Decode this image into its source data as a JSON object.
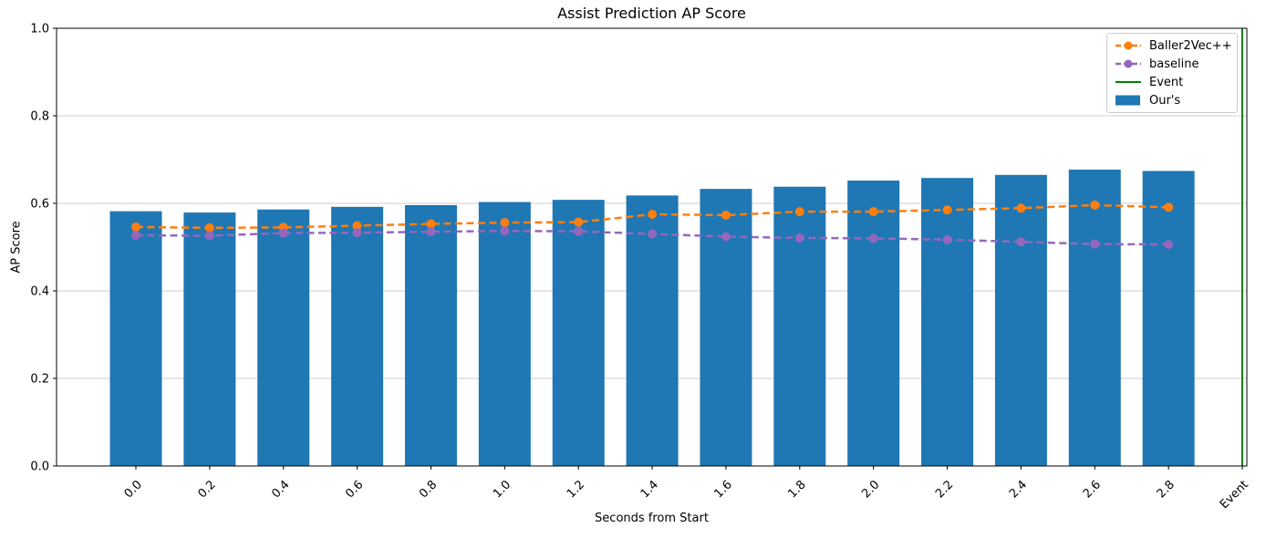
{
  "chart_data": {
    "type": "bar",
    "title": "Assist Prediction AP Score",
    "xlabel": "Seconds from Start",
    "ylabel": "AP Score",
    "ylim": [
      0.0,
      1.0
    ],
    "yticks": [
      0.0,
      0.2,
      0.4,
      0.6,
      0.8,
      1.0
    ],
    "ytick_labels": [
      "0.0",
      "0.2",
      "0.4",
      "0.6",
      "0.8",
      "1.0"
    ],
    "categories": [
      "0.0",
      "0.2",
      "0.4",
      "0.6",
      "0.8",
      "1.0",
      "1.2",
      "1.4",
      "1.6",
      "1.8",
      "2.0",
      "2.2",
      "2.4",
      "2.6",
      "2.8",
      "Event"
    ],
    "grid": "horizontal",
    "grid_color": "#cccccc",
    "series": [
      {
        "name": "Our's",
        "type": "bar",
        "color": "#1f77b4",
        "values": [
          0.582,
          0.579,
          0.586,
          0.592,
          0.596,
          0.603,
          0.608,
          0.618,
          0.633,
          0.638,
          0.652,
          0.658,
          0.665,
          0.677,
          0.674
        ]
      },
      {
        "name": "Baller2Vec++",
        "type": "line",
        "style": "dashed",
        "marker": "circle",
        "color": "#ff7f0e",
        "values": [
          0.546,
          0.544,
          0.545,
          0.549,
          0.553,
          0.556,
          0.557,
          0.575,
          0.573,
          0.581,
          0.581,
          0.585,
          0.589,
          0.596,
          0.591
        ]
      },
      {
        "name": "baseline",
        "type": "line",
        "style": "dashed",
        "marker": "circle",
        "color": "#9467bd",
        "values": [
          0.527,
          0.526,
          0.532,
          0.533,
          0.535,
          0.537,
          0.536,
          0.53,
          0.524,
          0.521,
          0.52,
          0.517,
          0.512,
          0.507,
          0.506
        ]
      },
      {
        "name": "Event",
        "type": "vline",
        "color": "#008000",
        "at_category": "Event"
      }
    ],
    "legend": {
      "position": "upper right",
      "items": [
        {
          "label": "Baller2Vec++",
          "swatch": "dashed-line-marker",
          "color": "#ff7f0e"
        },
        {
          "label": "baseline",
          "swatch": "dashed-line-marker",
          "color": "#9467bd"
        },
        {
          "label": "Event",
          "swatch": "solid-line",
          "color": "#008000"
        },
        {
          "label": "Our's",
          "swatch": "rect",
          "color": "#1f77b4"
        }
      ]
    }
  }
}
